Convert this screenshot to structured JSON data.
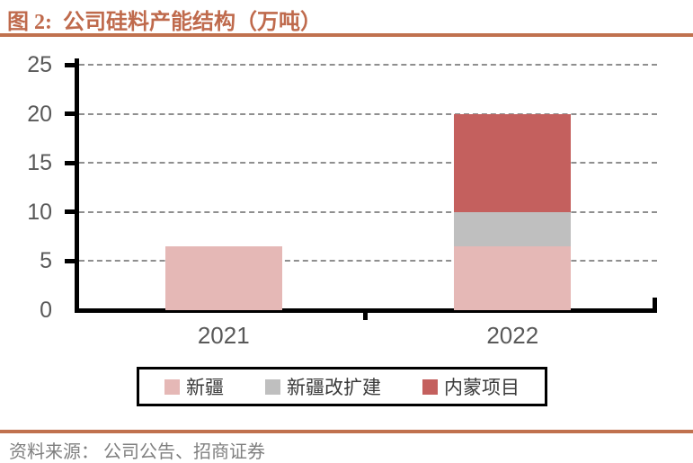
{
  "figure": {
    "title": "图 2:  公司硅料产能结构（万吨）",
    "source": "资料来源： 公司公告、招商证券",
    "accent_color": "#C0714E"
  },
  "chart_data": {
    "type": "bar",
    "stacked": true,
    "title": "公司硅料产能结构（万吨）",
    "categories": [
      "2021",
      "2022"
    ],
    "series": [
      {
        "name": "新疆",
        "color": "#E5B8B6",
        "values": [
          6.5,
          6.5
        ]
      },
      {
        "name": "新疆改扩建",
        "color": "#BFBFBF",
        "values": [
          0,
          3.5
        ]
      },
      {
        "name": "内蒙项目",
        "color": "#C4605E",
        "values": [
          0,
          10
        ]
      }
    ],
    "ylim": [
      0,
      25
    ],
    "ytick_step": 5,
    "yticks": [
      0,
      5,
      10,
      15,
      20,
      25
    ],
    "xlabel": "",
    "ylabel": "",
    "grid": "horizontal-dashed",
    "legend_position": "bottom",
    "axis_color": "#000000",
    "tick_label_color": "#595959"
  }
}
